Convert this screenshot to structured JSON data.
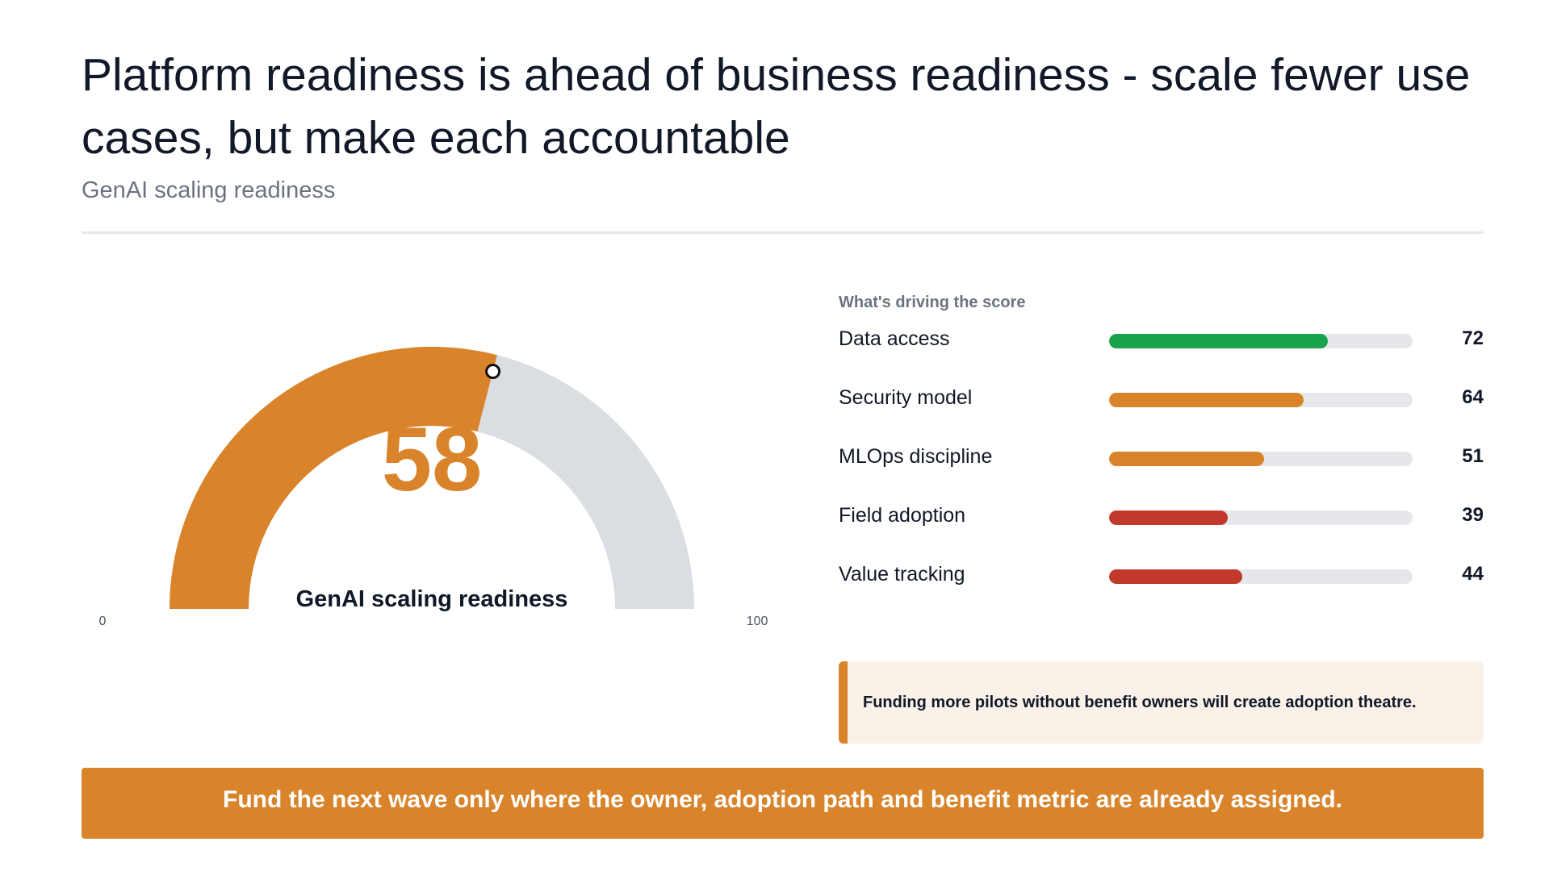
{
  "header": {
    "title": "Platform readiness is ahead of business readiness - scale fewer use cases, but make each accountable",
    "subtitle": "GenAI scaling readiness"
  },
  "colors": {
    "accent": "#d9842b",
    "good": "#16a34a",
    "bad": "#c0392b",
    "track": "#dadde2",
    "callout_bg": "#faf1e8"
  },
  "chart_data": [
    {
      "type": "gauge",
      "value": 58,
      "range": [
        0,
        100
      ],
      "min_label": "0",
      "max_label": "100",
      "value_label": "58",
      "label": "GenAI scaling readiness",
      "marker_icon": "circle-marker-icon"
    },
    {
      "type": "bar",
      "title": "What's driving the score",
      "orientation": "horizontal",
      "xlim": [
        0,
        100
      ],
      "categories": [
        "Data access",
        "Security model",
        "MLOps discipline",
        "Field adoption",
        "Value tracking"
      ],
      "values": [
        72,
        64,
        51,
        39,
        44
      ],
      "bar_colors": [
        "#16a34a",
        "#d9842b",
        "#d9842b",
        "#c0392b",
        "#c0392b"
      ]
    }
  ],
  "callout": {
    "text": "Funding more pilots without benefit owners will create adoption theatre."
  },
  "banner": {
    "text": "Fund the next wave only where the owner, adoption path and benefit metric are already assigned."
  }
}
